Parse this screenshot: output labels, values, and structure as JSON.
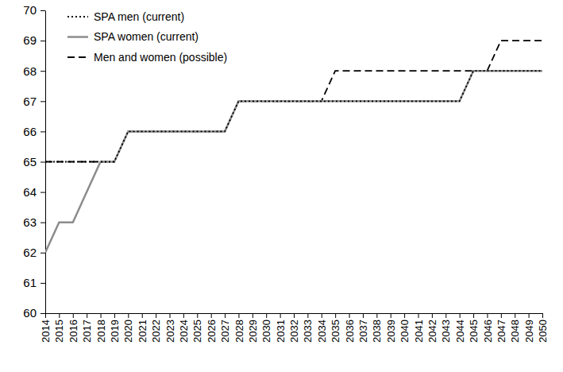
{
  "chart_data": {
    "type": "line",
    "x": [
      2014,
      2015,
      2016,
      2017,
      2018,
      2019,
      2020,
      2021,
      2022,
      2023,
      2024,
      2025,
      2026,
      2027,
      2028,
      2029,
      2030,
      2031,
      2032,
      2033,
      2034,
      2035,
      2036,
      2037,
      2038,
      2039,
      2040,
      2041,
      2042,
      2043,
      2044,
      2045,
      2046,
      2047,
      2048,
      2049,
      2050
    ],
    "xlim": [
      2014,
      2050
    ],
    "xticks": [
      2014,
      2015,
      2016,
      2017,
      2018,
      2019,
      2020,
      2021,
      2022,
      2023,
      2024,
      2025,
      2026,
      2027,
      2028,
      2029,
      2030,
      2031,
      2032,
      2033,
      2034,
      2035,
      2036,
      2037,
      2038,
      2039,
      2040,
      2041,
      2042,
      2043,
      2044,
      2045,
      2046,
      2047,
      2048,
      2049,
      2050
    ],
    "ylim": [
      60,
      70
    ],
    "yticks": [
      60,
      61,
      62,
      63,
      64,
      65,
      66,
      67,
      68,
      69,
      70
    ],
    "legend": "upper left",
    "series": [
      {
        "name": "Men and women (possible)",
        "color": "#000000",
        "line_style": "dashed",
        "values": [
          65,
          65,
          65,
          65,
          65,
          65,
          66,
          66,
          66,
          66,
          66,
          66,
          66,
          66,
          67,
          67,
          67,
          67,
          67,
          67,
          67,
          68,
          68,
          68,
          68,
          68,
          68,
          68,
          68,
          68,
          68,
          68,
          68,
          69,
          69,
          69,
          69
        ]
      },
      {
        "name": "SPA women (current)",
        "color": "#8c8c8c",
        "line_style": "solid",
        "values": [
          62,
          63,
          63,
          64,
          65,
          65,
          66,
          66,
          66,
          66,
          66,
          66,
          66,
          66,
          67,
          67,
          67,
          67,
          67,
          67,
          67,
          67,
          67,
          67,
          67,
          67,
          67,
          67,
          67,
          67,
          67,
          68,
          68,
          68,
          68,
          68,
          68
        ]
      },
      {
        "name": "SPA men (current)",
        "color": "#000000",
        "line_style": "dotted",
        "values": [
          65,
          65,
          65,
          65,
          65,
          65,
          66,
          66,
          66,
          66,
          66,
          66,
          66,
          66,
          67,
          67,
          67,
          67,
          67,
          67,
          67,
          67,
          67,
          67,
          67,
          67,
          67,
          67,
          67,
          67,
          67,
          68,
          68,
          68,
          68,
          68,
          68
        ]
      }
    ],
    "legend_order": [
      2,
      1,
      0
    ]
  }
}
